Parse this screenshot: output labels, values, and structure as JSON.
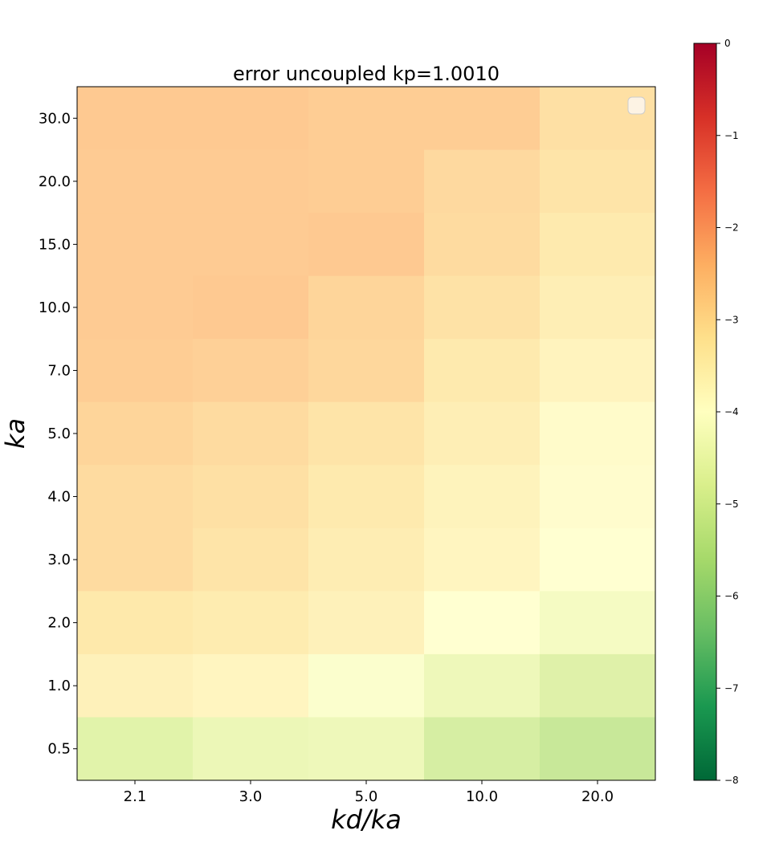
{
  "chart_data": {
    "type": "heatmap",
    "title": "error uncoupled kp=1.0010",
    "xlabel": "kd/ka",
    "ylabel": "ka",
    "x_categories": [
      "2.1",
      "3.0",
      "5.0",
      "10.0",
      "20.0"
    ],
    "y_categories": [
      "30.0",
      "20.0",
      "15.0",
      "10.0",
      "7.0",
      "5.0",
      "4.0",
      "3.0",
      "2.0",
      "1.0",
      "0.5"
    ],
    "values": [
      [
        -2.5,
        -2.5,
        -2.6,
        -2.6,
        -3.0
      ],
      [
        -2.55,
        -2.55,
        -2.6,
        -2.85,
        -3.1
      ],
      [
        -2.55,
        -2.55,
        -2.5,
        -2.9,
        -3.25
      ],
      [
        -2.55,
        -2.5,
        -2.75,
        -3.05,
        -3.4
      ],
      [
        -2.6,
        -2.65,
        -2.8,
        -3.25,
        -3.6
      ],
      [
        -2.75,
        -2.9,
        -3.1,
        -3.4,
        -3.85
      ],
      [
        -2.9,
        -3.0,
        -3.25,
        -3.55,
        -3.9
      ],
      [
        -2.9,
        -3.1,
        -3.35,
        -3.65,
        -4.0
      ],
      [
        -3.2,
        -3.3,
        -3.5,
        -4.0,
        -4.3
      ],
      [
        -3.5,
        -3.65,
        -4.1,
        -4.5,
        -4.9
      ],
      [
        -4.85,
        -4.55,
        -4.5,
        -5.1,
        -5.4
      ]
    ],
    "colorbar": {
      "min": -8,
      "max": 0,
      "ticks": [
        "0",
        "−1",
        "−2",
        "−3",
        "−4",
        "−5",
        "−6",
        "−7",
        "−8"
      ],
      "colormap": "RdYlGn_r"
    },
    "legend": {
      "placement": "upper right",
      "entries": []
    }
  }
}
